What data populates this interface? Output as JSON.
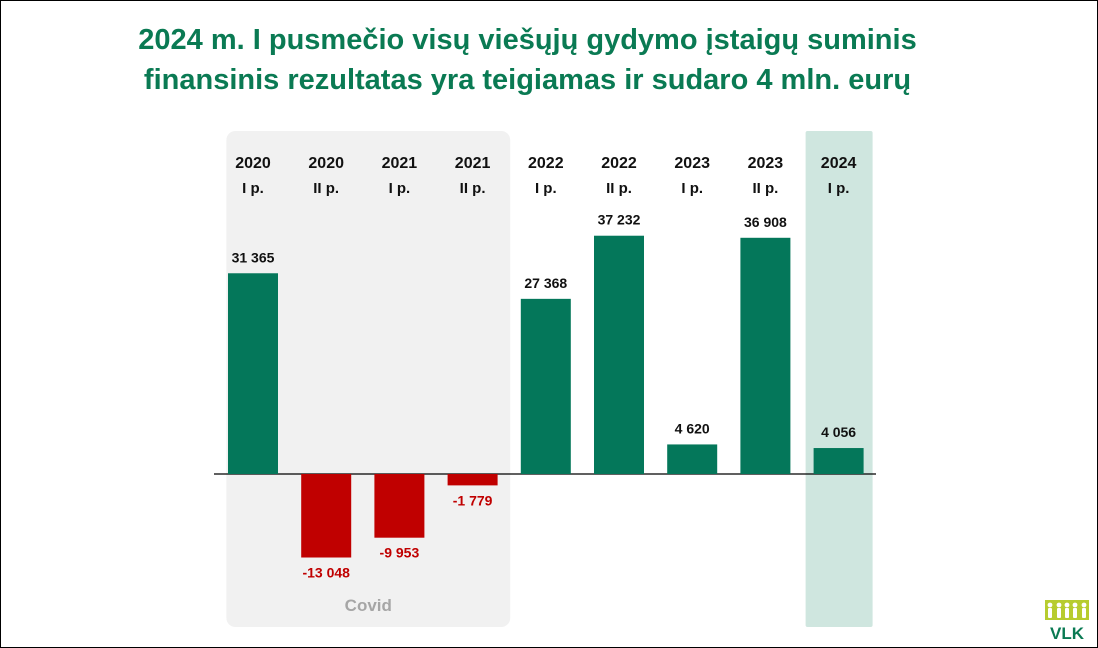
{
  "title": {
    "line1": "2024 m. I pusmečio visų viešųjų gydymo įstaigų suminis",
    "line2": "finansinis rezultatas yra teigiamas ir sudaro 4 mln. eurų"
  },
  "covid_label": "Covid",
  "logo_text": "VLK",
  "colors": {
    "title": "#0a7a53",
    "positive": "#04775a",
    "negative": "#c00000",
    "negative_label": "#c00000",
    "covid_panel": "#f1f1f1",
    "highlight_panel": "#cfe6df",
    "covid_label": "#a6a6a6",
    "axis": "#000000"
  },
  "chart_data": {
    "type": "bar",
    "categories": [
      [
        "2020",
        "I p."
      ],
      [
        "2020",
        "II p."
      ],
      [
        "2021",
        "I p."
      ],
      [
        "2021",
        "II p."
      ],
      [
        "2022",
        "I p."
      ],
      [
        "2022",
        "II p."
      ],
      [
        "2023",
        "I p."
      ],
      [
        "2023",
        "II p."
      ],
      [
        "2024",
        "I p."
      ]
    ],
    "values": [
      31365,
      -13048,
      -9953,
      -1779,
      27368,
      37232,
      4620,
      36908,
      4056
    ],
    "labels": [
      "31 365",
      "-13 048",
      "-9 953",
      "-1 779",
      "27 368",
      "37 232",
      "4 620",
      "36 908",
      "4 056"
    ],
    "covid_categories": [
      0,
      1,
      2,
      3
    ],
    "highlight_category": 8,
    "grid": false,
    "legend": "none"
  }
}
